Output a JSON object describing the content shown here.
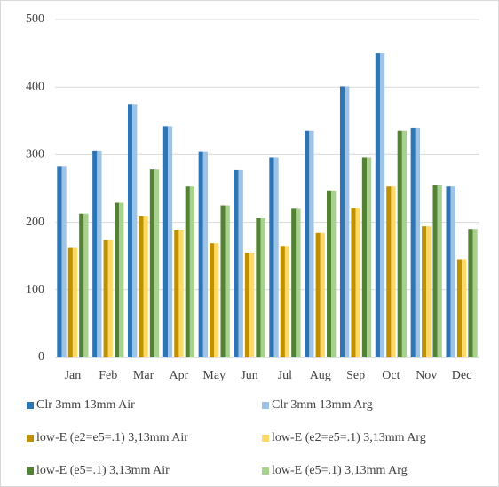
{
  "chart_data": {
    "type": "bar",
    "categories": [
      "Jan",
      "Feb",
      "Mar",
      "Apr",
      "May",
      "Jun",
      "Jul",
      "Aug",
      "Sep",
      "Oct",
      "Nov",
      "Dec"
    ],
    "series": [
      {
        "name": "Clr 3mm 13mm Air",
        "color": "#2e75b6",
        "values": [
          283,
          306,
          375,
          342,
          305,
          277,
          296,
          335,
          401,
          450,
          340,
          253
        ]
      },
      {
        "name": "Clr 3mm 13mm Arg",
        "color": "#9dc3e6",
        "values": [
          283,
          306,
          375,
          342,
          305,
          277,
          296,
          335,
          401,
          450,
          340,
          253
        ]
      },
      {
        "name": "low-E (e2=e5=.1) 3,13mm Air",
        "color": "#bf9000",
        "values": [
          162,
          174,
          209,
          189,
          169,
          155,
          165,
          184,
          221,
          253,
          194,
          145
        ]
      },
      {
        "name": "low-E (e2=e5=.1) 3,13mm Arg",
        "color": "#ffd966",
        "values": [
          162,
          174,
          209,
          189,
          169,
          155,
          165,
          184,
          221,
          253,
          194,
          145
        ]
      },
      {
        "name": "low-E (e5=.1) 3,13mm Air",
        "color": "#548235",
        "values": [
          213,
          229,
          278,
          253,
          225,
          206,
          220,
          247,
          296,
          335,
          255,
          190
        ]
      },
      {
        "name": "low-E (e5=.1) 3,13mm Arg",
        "color": "#a9d18e",
        "values": [
          213,
          229,
          278,
          253,
          225,
          206,
          220,
          247,
          296,
          335,
          255,
          190
        ]
      }
    ],
    "ylim": [
      0,
      500
    ],
    "yticks": [
      0,
      100,
      200,
      300,
      400,
      500
    ],
    "grid": true,
    "legend": "bottom"
  }
}
